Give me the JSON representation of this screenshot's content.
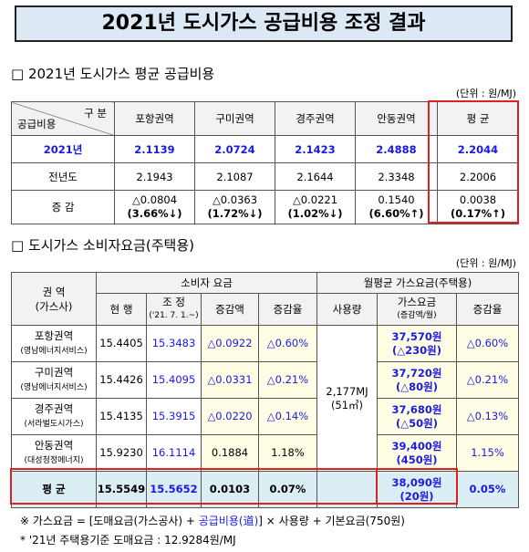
{
  "title": "2021년 도시가스 공급비용 조정 결과",
  "section1": {
    "heading": "□ 2021년 도시가스 평균 공급비용",
    "unit": "(단위 : 원/MJ)",
    "corner_top": "구  분",
    "corner_bottom": "공급비용",
    "columns": [
      "포항권역",
      "구미권역",
      "경주권역",
      "안동권역",
      "평 균"
    ],
    "rows": [
      [
        "2021년",
        "2.1139",
        "2.0724",
        "2.1423",
        "2.4888",
        "2.2044"
      ],
      [
        "전년도",
        "2.1943",
        "2.1087",
        "2.1644",
        "2.3348",
        "2.2006"
      ],
      [
        "증  감",
        [
          "△0.0804",
          "(3.66%↓)"
        ],
        [
          "△0.0363",
          "(1.72%↓)"
        ],
        [
          "△0.0221",
          "(1.02%↓)"
        ],
        [
          "0.1540",
          "(6.60%↑)"
        ],
        [
          "0.0038",
          "(0.17%↑)"
        ]
      ]
    ]
  },
  "section2": {
    "heading": "□ 도시가스 소비자요금(주택용)",
    "unit": "(단위 : 원/MJ)",
    "header": {
      "region": [
        "권  역",
        "(가스사)"
      ],
      "consumer": "소비자 요금",
      "monthly": "월평균 가스요금(주택용)",
      "current": "현 행",
      "adjusted": [
        "조 정",
        "('21. 7. 1.~)"
      ],
      "change_amount": "증감액",
      "change_rate": "증감율",
      "usage": "사용량",
      "charge": [
        "가스요금",
        "(증감액/월)"
      ],
      "charge_rate": "증감율"
    },
    "usage": [
      "2,177MJ",
      "(51㎥)"
    ],
    "rows": [
      {
        "region": [
          "포항권역",
          "(영남에너지서비스)"
        ],
        "current": "15.4405",
        "adjusted": "15.3483",
        "change_amount": "△0.0922",
        "change_rate": "△0.60%",
        "charge": [
          "37,570원",
          "(△230원)"
        ],
        "charge_rate": "△0.60%"
      },
      {
        "region": [
          "구미권역",
          "(영남에너지서비스)"
        ],
        "current": "15.4426",
        "adjusted": "15.4095",
        "change_amount": "△0.0331",
        "change_rate": "△0.21%",
        "charge": [
          "37,720원",
          "(△80원)"
        ],
        "charge_rate": "△0.21%"
      },
      {
        "region": [
          "경주권역",
          "(서라벌도시가스)"
        ],
        "current": "15.4135",
        "adjusted": "15.3915",
        "change_amount": "△0.0220",
        "change_rate": "△0.14%",
        "charge": [
          "37,680원",
          "(△50원)"
        ],
        "charge_rate": "△0.13%"
      },
      {
        "region": [
          "안동권역",
          "(대성청정에너지)"
        ],
        "current": "15.9230",
        "adjusted": "16.1114",
        "change_amount": "0.1884",
        "change_rate": "1.18%",
        "charge": [
          "39,400원",
          "(450원)"
        ],
        "charge_rate": "1.15%"
      }
    ],
    "average": {
      "region": "평  균",
      "current": "15.5549",
      "adjusted": "15.5652",
      "change_amount": "0.0103",
      "change_rate": "0.07%",
      "charge": [
        "38,090원",
        "(20원)"
      ],
      "charge_rate": "0.05%"
    }
  },
  "notes": [
    [
      "※  가스요금 = [도매요금(가스공사) + ",
      "공급비용(道)",
      "] × 사용량 + 기본요금(750원)"
    ],
    "* '21년 주택용기준 도매요금 : 12.9284원/MJ"
  ]
}
